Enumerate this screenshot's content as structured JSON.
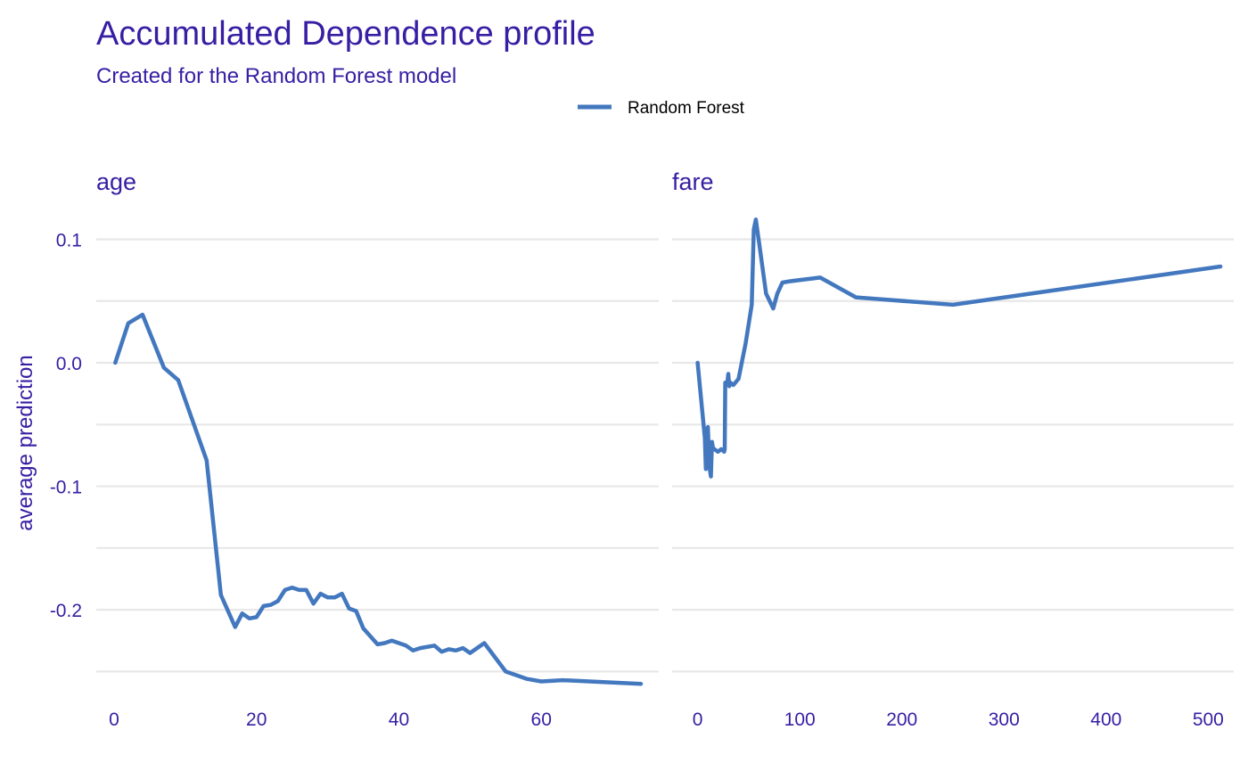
{
  "chart_data": {
    "type": "line",
    "title": "Accumulated Dependence profile",
    "subtitle": "Created for the Random Forest model",
    "ylabel": "average prediction",
    "legend": {
      "position": "top",
      "entries": [
        "Random Forest"
      ]
    },
    "colors": {
      "line": "#4378bf",
      "text": "#371ea3",
      "grid": "#e8e8e8",
      "legend_text": "#000000"
    },
    "grid": true,
    "ylim": [
      -0.262,
      0.122
    ],
    "yticks": [
      0.1,
      0.0,
      -0.1,
      -0.2
    ],
    "ytick_labels": [
      "0.1",
      "0.0",
      "-0.1",
      "-0.2"
    ],
    "panels": [
      {
        "label": "age",
        "xlim": [
          -2.5,
          76.5
        ],
        "xticks": [
          0,
          20,
          40,
          60
        ],
        "xtick_labels": [
          "0",
          "20",
          "40",
          "60"
        ],
        "series": [
          {
            "name": "Random Forest",
            "x": [
              0.17,
              2,
              4,
              7,
              9,
              13,
              15,
              17,
              18,
              19,
              20,
              21,
              22,
              23,
              24,
              25,
              26,
              27,
              28,
              29,
              30,
              31,
              32,
              33,
              34,
              35,
              37,
              38,
              39,
              41,
              42,
              43,
              45,
              46,
              47,
              48,
              49,
              50,
              52,
              55,
              58,
              60,
              63,
              74
            ],
            "y": [
              0.0,
              0.032,
              0.039,
              -0.004,
              -0.014,
              -0.079,
              -0.188,
              -0.214,
              -0.203,
              -0.207,
              -0.206,
              -0.197,
              -0.196,
              -0.193,
              -0.184,
              -0.182,
              -0.184,
              -0.184,
              -0.195,
              -0.187,
              -0.19,
              -0.19,
              -0.187,
              -0.199,
              -0.201,
              -0.215,
              -0.228,
              -0.227,
              -0.225,
              -0.229,
              -0.233,
              -0.231,
              -0.229,
              -0.234,
              -0.232,
              -0.233,
              -0.231,
              -0.235,
              -0.227,
              -0.25,
              -0.256,
              -0.258,
              -0.257,
              -0.26
            ]
          }
        ]
      },
      {
        "label": "fare",
        "xlim": [
          -25,
          525
        ],
        "xticks": [
          0,
          100,
          200,
          300,
          400,
          500
        ],
        "xtick_labels": [
          "0",
          "100",
          "200",
          "300",
          "400",
          "500"
        ],
        "series": [
          {
            "name": "Random Forest",
            "x": [
              0,
              7,
              8,
              9,
              10,
              11,
              12,
              13,
              14,
              15,
              18,
              20,
              23,
              26,
              26.5,
              27,
              28,
              29,
              30,
              31,
              32,
              35,
              40,
              47,
              53,
              55,
              57,
              60,
              67,
              74,
              78,
              83,
              90,
              120,
              155,
              250,
              512
            ],
            "y": [
              0.0,
              -0.061,
              -0.086,
              -0.079,
              -0.052,
              -0.073,
              -0.087,
              -0.092,
              -0.064,
              -0.069,
              -0.071,
              -0.072,
              -0.07,
              -0.072,
              -0.07,
              -0.016,
              -0.016,
              -0.016,
              -0.009,
              -0.019,
              -0.016,
              -0.018,
              -0.013,
              0.016,
              0.047,
              0.108,
              0.116,
              0.098,
              0.056,
              0.044,
              0.056,
              0.065,
              0.066,
              0.069,
              0.053,
              0.047,
              0.078
            ]
          }
        ]
      }
    ]
  }
}
